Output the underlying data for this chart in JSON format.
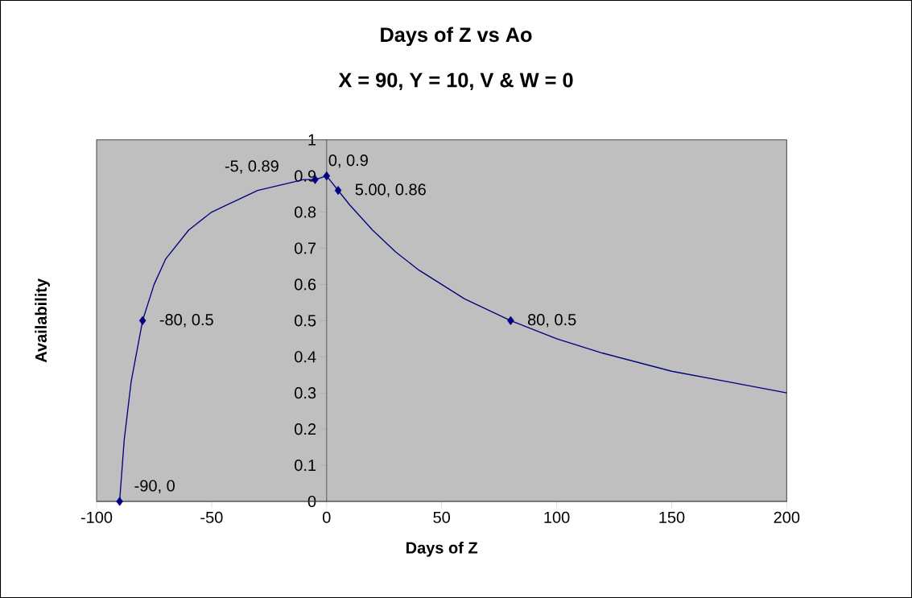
{
  "chart_data": {
    "type": "line",
    "title": "Days of Z vs Ao",
    "subtitle": "X = 90, Y = 10, V & W = 0",
    "xlabel": "Days of Z",
    "ylabel": "Availability",
    "series": [
      {
        "color": "#000080",
        "marker": "none",
        "x": [
          -90,
          -88,
          -85,
          -80,
          -75,
          -70,
          -60,
          -50,
          -40,
          -30,
          -20,
          -10,
          -5,
          0,
          5,
          10,
          20,
          30,
          40,
          60,
          80,
          100,
          120,
          150,
          175,
          200
        ],
        "values": [
          0,
          0.17,
          0.33,
          0.5,
          0.6,
          0.67,
          0.75,
          0.8,
          0.83,
          0.86,
          0.875,
          0.89,
          0.89,
          0.9,
          0.86,
          0.82,
          0.75,
          0.69,
          0.64,
          0.56,
          0.5,
          0.45,
          0.41,
          0.36,
          0.33,
          0.3
        ]
      },
      {
        "type": "scatter",
        "color": "#000080",
        "marker": "diamond",
        "x": [
          -90,
          -80,
          -5,
          0,
          5,
          80
        ],
        "values": [
          0,
          0.5,
          0.89,
          0.9,
          0.86,
          0.5
        ]
      }
    ],
    "annotations": [
      {
        "text": "-90, 0",
        "x": -90,
        "y": 0
      },
      {
        "text": "-80, 0.5",
        "x": -80,
        "y": 0.5
      },
      {
        "text": "-5, 0.89",
        "x": -5,
        "y": 0.89
      },
      {
        "text": "0, 0.9",
        "x": 0,
        "y": 0.9
      },
      {
        "text": "5.00, 0.86",
        "x": 5,
        "y": 0.86
      },
      {
        "text": "80, 0.5",
        "x": 80,
        "y": 0.5
      }
    ],
    "xlim": [
      -100,
      200
    ],
    "ylim": [
      0,
      1
    ],
    "xticks": [
      -100,
      -50,
      0,
      50,
      100,
      150,
      200
    ],
    "yticks": [
      0,
      0.1,
      0.2,
      0.3,
      0.4,
      0.5,
      0.6,
      0.7,
      0.8,
      0.9,
      1
    ],
    "grid": false
  }
}
